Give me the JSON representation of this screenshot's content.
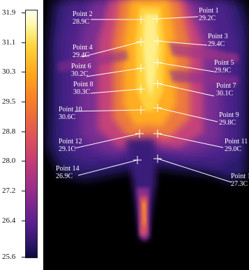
{
  "scale": {
    "labels": [
      "31.9",
      "31.1",
      "30.3",
      "29.5",
      "28.8",
      "28.0",
      "27.2",
      "26.4",
      "25.6"
    ],
    "colors": [
      "#fffff2",
      "#ffd640",
      "#e25556",
      "#902c8c",
      "#0b0a3c"
    ]
  },
  "points": [
    {
      "name": "Point 1",
      "value": "29.2C"
    },
    {
      "name": "Point 2",
      "value": "28.9C"
    },
    {
      "name": "Point 3",
      "value": "29.4C"
    },
    {
      "name": "Point 4",
      "value": "29.4C"
    },
    {
      "name": "Point 5",
      "value": "29.9C"
    },
    {
      "name": "Point 6",
      "value": "30.2C"
    },
    {
      "name": "Point 7",
      "value": "30.1C"
    },
    {
      "name": "Point 8",
      "value": "30.3C"
    },
    {
      "name": "Point 9",
      "value": "29.8C"
    },
    {
      "name": "Point 10",
      "value": "30.6C"
    },
    {
      "name": "Point 11",
      "value": "29.0C"
    },
    {
      "name": "Point 12",
      "value": "29.1C"
    },
    {
      "name": "Point 13",
      "value": "27.3C"
    },
    {
      "name": "Point 14",
      "value": "26.9C"
    }
  ]
}
